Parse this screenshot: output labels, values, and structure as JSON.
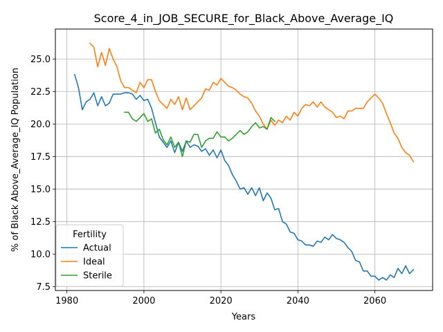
{
  "chart_data": {
    "type": "line",
    "title": "Score_4_in_JOB_SECURE_for_Black_Above_Average_IQ",
    "xlabel": "Years",
    "ylabel": "% of Black Above_Average_IQ Population",
    "xlim": [
      1977,
      2075
    ],
    "ylim": [
      7.2,
      27.3
    ],
    "xticks": [
      1980,
      2000,
      2020,
      2040,
      2060
    ],
    "yticks": [
      7.5,
      10.0,
      12.5,
      15.0,
      17.5,
      20.0,
      22.5,
      25.0
    ],
    "ytick_labels": [
      "7.5",
      "10.0",
      "12.5",
      "15.0",
      "17.5",
      "20.0",
      "22.5",
      "25.0"
    ],
    "grid": true,
    "legend": {
      "title": "Fertility",
      "placement": "bottom-left"
    },
    "series": [
      {
        "name": "Actual",
        "color": "#1f77b4",
        "x": [
          1982,
          1983,
          1984,
          1985,
          1986,
          1987,
          1988,
          1989,
          1990,
          1991,
          1992,
          1993,
          1994,
          1995,
          1996,
          1997,
          1998,
          1999,
          2000,
          2001,
          2002,
          2003,
          2004,
          2005,
          2006,
          2007,
          2008,
          2009,
          2010,
          2011,
          2012,
          2013,
          2014,
          2015,
          2016,
          2017,
          2018,
          2019,
          2020,
          2021,
          2022,
          2023,
          2024,
          2025,
          2026,
          2027,
          2028,
          2029,
          2030,
          2031,
          2032,
          2033,
          2034,
          2035,
          2036,
          2037,
          2038,
          2039,
          2040,
          2041,
          2042,
          2043,
          2044,
          2045,
          2046,
          2047,
          2048,
          2049,
          2050,
          2051,
          2052,
          2053,
          2054,
          2055,
          2056,
          2057,
          2058,
          2059,
          2060,
          2061,
          2062,
          2063,
          2064,
          2065,
          2066,
          2067,
          2068,
          2069,
          2070
        ],
        "y": [
          23.8,
          22.8,
          21.1,
          21.7,
          21.9,
          22.4,
          21.4,
          22.1,
          21.4,
          21.6,
          22.3,
          22.3,
          22.3,
          22.4,
          22.4,
          22.3,
          21.9,
          22.2,
          21.8,
          21.9,
          21.2,
          20.1,
          19.0,
          18.6,
          18.2,
          18.7,
          17.8,
          18.6,
          17.9,
          18.7,
          18.2,
          18.4,
          18.3,
          17.9,
          18.1,
          17.6,
          18.0,
          17.4,
          18.0,
          17.2,
          16.8,
          16.1,
          15.6,
          15.0,
          15.1,
          14.6,
          15.1,
          14.5,
          15.1,
          14.1,
          14.7,
          14.3,
          13.4,
          13.5,
          12.5,
          12.3,
          11.7,
          11.6,
          11.1,
          11.0,
          10.7,
          10.7,
          10.6,
          11.0,
          10.9,
          11.3,
          11.1,
          11.5,
          11.2,
          11.1,
          10.9,
          10.5,
          10.2,
          9.5,
          9.4,
          8.7,
          8.7,
          8.3,
          8.3,
          8.0,
          8.2,
          8.0,
          8.4,
          8.2,
          8.9,
          8.5,
          9.1,
          8.5,
          8.8
        ]
      },
      {
        "name": "Ideal",
        "color": "#ff7f0e",
        "x": [
          1986,
          1987,
          1988,
          1989,
          1990,
          1991,
          1992,
          1993,
          1994,
          1995,
          1996,
          1997,
          1998,
          1999,
          2000,
          2001,
          2002,
          2003,
          2004,
          2005,
          2006,
          2007,
          2008,
          2009,
          2010,
          2011,
          2012,
          2013,
          2014,
          2015,
          2016,
          2017,
          2018,
          2019,
          2020,
          2021,
          2022,
          2023,
          2024,
          2025,
          2026,
          2027,
          2028,
          2029,
          2030,
          2031,
          2032,
          2033,
          2034,
          2035,
          2036,
          2037,
          2038,
          2039,
          2040,
          2041,
          2042,
          2043,
          2044,
          2045,
          2046,
          2047,
          2048,
          2049,
          2050,
          2051,
          2052,
          2053,
          2054,
          2055,
          2056,
          2057,
          2058,
          2059,
          2060,
          2061,
          2062,
          2063,
          2064,
          2065,
          2066,
          2067,
          2068,
          2069,
          2070
        ],
        "y": [
          26.2,
          25.9,
          24.4,
          25.5,
          24.5,
          25.8,
          25.0,
          24.4,
          23.3,
          22.8,
          22.8,
          22.6,
          22.4,
          23.2,
          22.8,
          23.4,
          23.4,
          22.5,
          21.8,
          21.5,
          21.2,
          21.9,
          21.5,
          22.1,
          21.1,
          22.0,
          21.1,
          21.4,
          21.7,
          22.0,
          22.7,
          22.6,
          23.2,
          23.0,
          23.5,
          23.2,
          22.9,
          22.8,
          22.6,
          22.3,
          22.1,
          22.0,
          21.6,
          21.0,
          20.6,
          20.0,
          19.6,
          20.3,
          19.9,
          20.3,
          20.1,
          20.6,
          20.3,
          20.9,
          20.6,
          21.2,
          21.5,
          21.4,
          21.7,
          21.3,
          21.7,
          21.3,
          21.1,
          20.9,
          20.5,
          20.6,
          20.4,
          21.0,
          21.0,
          21.2,
          21.2,
          21.2,
          21.7,
          22.0,
          22.3,
          22.0,
          21.6,
          20.8,
          20.1,
          19.3,
          18.9,
          18.2,
          17.8,
          17.6,
          17.1
        ]
      },
      {
        "name": "Sterile",
        "color": "#2ca02c",
        "x": [
          1995,
          1996,
          1997,
          1998,
          1999,
          2000,
          2001,
          2002,
          2003,
          2004,
          2005,
          2006,
          2007,
          2008,
          2009,
          2010,
          2011,
          2012,
          2013,
          2014,
          2015,
          2016,
          2017,
          2018,
          2019,
          2020,
          2021,
          2022,
          2023,
          2024,
          2025,
          2026,
          2027,
          2028,
          2029,
          2030,
          2031,
          2032,
          2033,
          2034
        ],
        "y": [
          20.9,
          20.9,
          20.4,
          20.2,
          20.5,
          20.8,
          20.2,
          20.4,
          19.3,
          19.6,
          18.8,
          18.4,
          19.0,
          18.2,
          18.6,
          17.5,
          18.7,
          18.6,
          19.2,
          19.2,
          18.2,
          18.7,
          18.9,
          18.9,
          19.4,
          19.0,
          19.0,
          18.7,
          18.9,
          19.2,
          19.5,
          19.2,
          19.4,
          19.8,
          20.1,
          19.7,
          19.8,
          19.6,
          20.5,
          20.2
        ]
      }
    ]
  }
}
